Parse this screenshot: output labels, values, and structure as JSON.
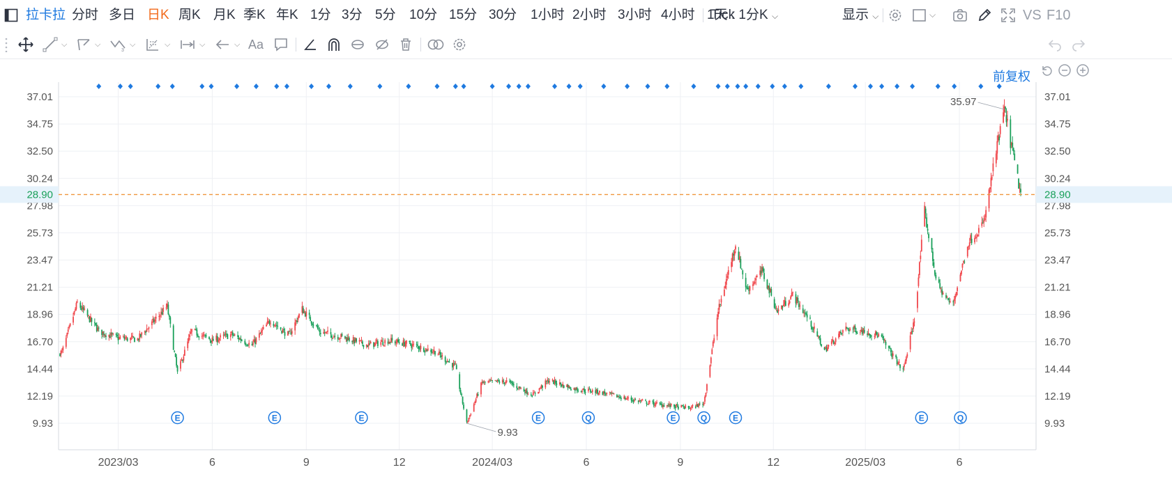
{
  "topbar": {
    "title": "拉卡拉",
    "periods": [
      "分时",
      "多日",
      "日K",
      "周K",
      "月K",
      "季K",
      "年K",
      "1分",
      "3分",
      "5分",
      "10分",
      "15分",
      "30分",
      "1小时",
      "2小时",
      "3小时",
      "4小时",
      "Tick"
    ],
    "active_period": "日K",
    "custom_period": "1天 : 1分K",
    "display_label": "显示",
    "vs_label": "VS",
    "f10_label": "F10"
  },
  "toolbar": {
    "text_tool_label": "Aa"
  },
  "chart_header": {
    "adjust_label": "前复权"
  },
  "price_line": {
    "value": "28.90",
    "color": "#f0963c"
  },
  "colors": {
    "up": "#f0464b",
    "down": "#1aa05a",
    "accent": "#1f7ae0"
  },
  "chart_data": {
    "type": "candlestick",
    "y_axis_ticks": [
      "37.01",
      "34.75",
      "32.50",
      "30.24",
      "27.98",
      "25.73",
      "23.47",
      "21.21",
      "18.96",
      "16.70",
      "14.44",
      "12.19",
      "9.93"
    ],
    "y_tick_values": [
      37.01,
      34.75,
      32.5,
      30.24,
      27.98,
      25.73,
      23.47,
      21.21,
      18.96,
      16.7,
      14.44,
      12.19,
      9.93
    ],
    "x_axis_labels": [
      "2023/03",
      "6",
      "9",
      "12",
      "2024/03",
      "6",
      "9",
      "12",
      "2025/03",
      "6"
    ],
    "x_label_dates": [
      "2023-03-01",
      "2023-06-01",
      "2023-09-01",
      "2023-12-01",
      "2024-03-01",
      "2024-06-01",
      "2024-09-01",
      "2024-12-01",
      "2025-03-01",
      "2025-06-01"
    ],
    "date_range": [
      "2023-01-03",
      "2025-07-31"
    ],
    "ylim": [
      8.9,
      38.0
    ],
    "annotations": [
      {
        "label": "35.97",
        "value": 35.97
      },
      {
        "label": "9.93",
        "value": 9.93
      }
    ],
    "event_markers": [
      {
        "label": "E",
        "date": "2023-04-28"
      },
      {
        "label": "E",
        "date": "2023-08-01"
      },
      {
        "label": "E",
        "date": "2023-10-25"
      },
      {
        "label": "E",
        "date": "2024-04-15"
      },
      {
        "label": "Q",
        "date": "2024-06-03"
      },
      {
        "label": "E",
        "date": "2024-08-25"
      },
      {
        "label": "Q",
        "date": "2024-09-24"
      },
      {
        "label": "E",
        "date": "2024-10-25"
      },
      {
        "label": "E",
        "date": "2025-04-25"
      },
      {
        "label": "Q",
        "date": "2025-06-02"
      }
    ],
    "monthly_closes": [
      {
        "date": "2023-01-05",
        "close": 15.8
      },
      {
        "date": "2023-01-20",
        "close": 19.9
      },
      {
        "date": "2023-02-10",
        "close": 17.6
      },
      {
        "date": "2023-02-28",
        "close": 17.0
      },
      {
        "date": "2023-03-20",
        "close": 16.9
      },
      {
        "date": "2023-04-05",
        "close": 18.4
      },
      {
        "date": "2023-04-18",
        "close": 19.6
      },
      {
        "date": "2023-04-28",
        "close": 14.1
      },
      {
        "date": "2023-05-12",
        "close": 17.6
      },
      {
        "date": "2023-06-01",
        "close": 16.8
      },
      {
        "date": "2023-06-20",
        "close": 17.3
      },
      {
        "date": "2023-07-10",
        "close": 16.4
      },
      {
        "date": "2023-07-28",
        "close": 18.5
      },
      {
        "date": "2023-08-15",
        "close": 17.2
      },
      {
        "date": "2023-08-28",
        "close": 19.4
      },
      {
        "date": "2023-09-15",
        "close": 17.5
      },
      {
        "date": "2023-10-10",
        "close": 17.0
      },
      {
        "date": "2023-11-01",
        "close": 16.4
      },
      {
        "date": "2023-11-20",
        "close": 16.8
      },
      {
        "date": "2023-12-10",
        "close": 16.5
      },
      {
        "date": "2024-01-05",
        "close": 15.9
      },
      {
        "date": "2024-01-25",
        "close": 14.6
      },
      {
        "date": "2024-02-05",
        "close": 9.93
      },
      {
        "date": "2024-02-20",
        "close": 13.3
      },
      {
        "date": "2024-03-15",
        "close": 13.4
      },
      {
        "date": "2024-04-10",
        "close": 12.3
      },
      {
        "date": "2024-04-25",
        "close": 13.5
      },
      {
        "date": "2024-05-20",
        "close": 12.8
      },
      {
        "date": "2024-06-15",
        "close": 12.5
      },
      {
        "date": "2024-07-15",
        "close": 11.9
      },
      {
        "date": "2024-08-10",
        "close": 11.5
      },
      {
        "date": "2024-09-10",
        "close": 11.2
      },
      {
        "date": "2024-09-24",
        "close": 11.6
      },
      {
        "date": "2024-10-08",
        "close": 19.2
      },
      {
        "date": "2024-10-15",
        "close": 21.5
      },
      {
        "date": "2024-10-25",
        "close": 24.8
      },
      {
        "date": "2024-11-05",
        "close": 21.0
      },
      {
        "date": "2024-11-20",
        "close": 22.5
      },
      {
        "date": "2024-12-05",
        "close": 19.2
      },
      {
        "date": "2024-12-20",
        "close": 20.6
      },
      {
        "date": "2025-01-05",
        "close": 18.5
      },
      {
        "date": "2025-01-20",
        "close": 16.0
      },
      {
        "date": "2025-02-10",
        "close": 17.8
      },
      {
        "date": "2025-02-28",
        "close": 17.6
      },
      {
        "date": "2025-03-15",
        "close": 17.2
      },
      {
        "date": "2025-04-07",
        "close": 14.3
      },
      {
        "date": "2025-04-18",
        "close": 18.5
      },
      {
        "date": "2025-04-28",
        "close": 27.5
      },
      {
        "date": "2025-05-10",
        "close": 21.5
      },
      {
        "date": "2025-05-25",
        "close": 19.6
      },
      {
        "date": "2025-06-10",
        "close": 25.0
      },
      {
        "date": "2025-06-25",
        "close": 26.5
      },
      {
        "date": "2025-07-05",
        "close": 31.5
      },
      {
        "date": "2025-07-15",
        "close": 35.97
      },
      {
        "date": "2025-07-31",
        "close": 28.9
      }
    ]
  }
}
